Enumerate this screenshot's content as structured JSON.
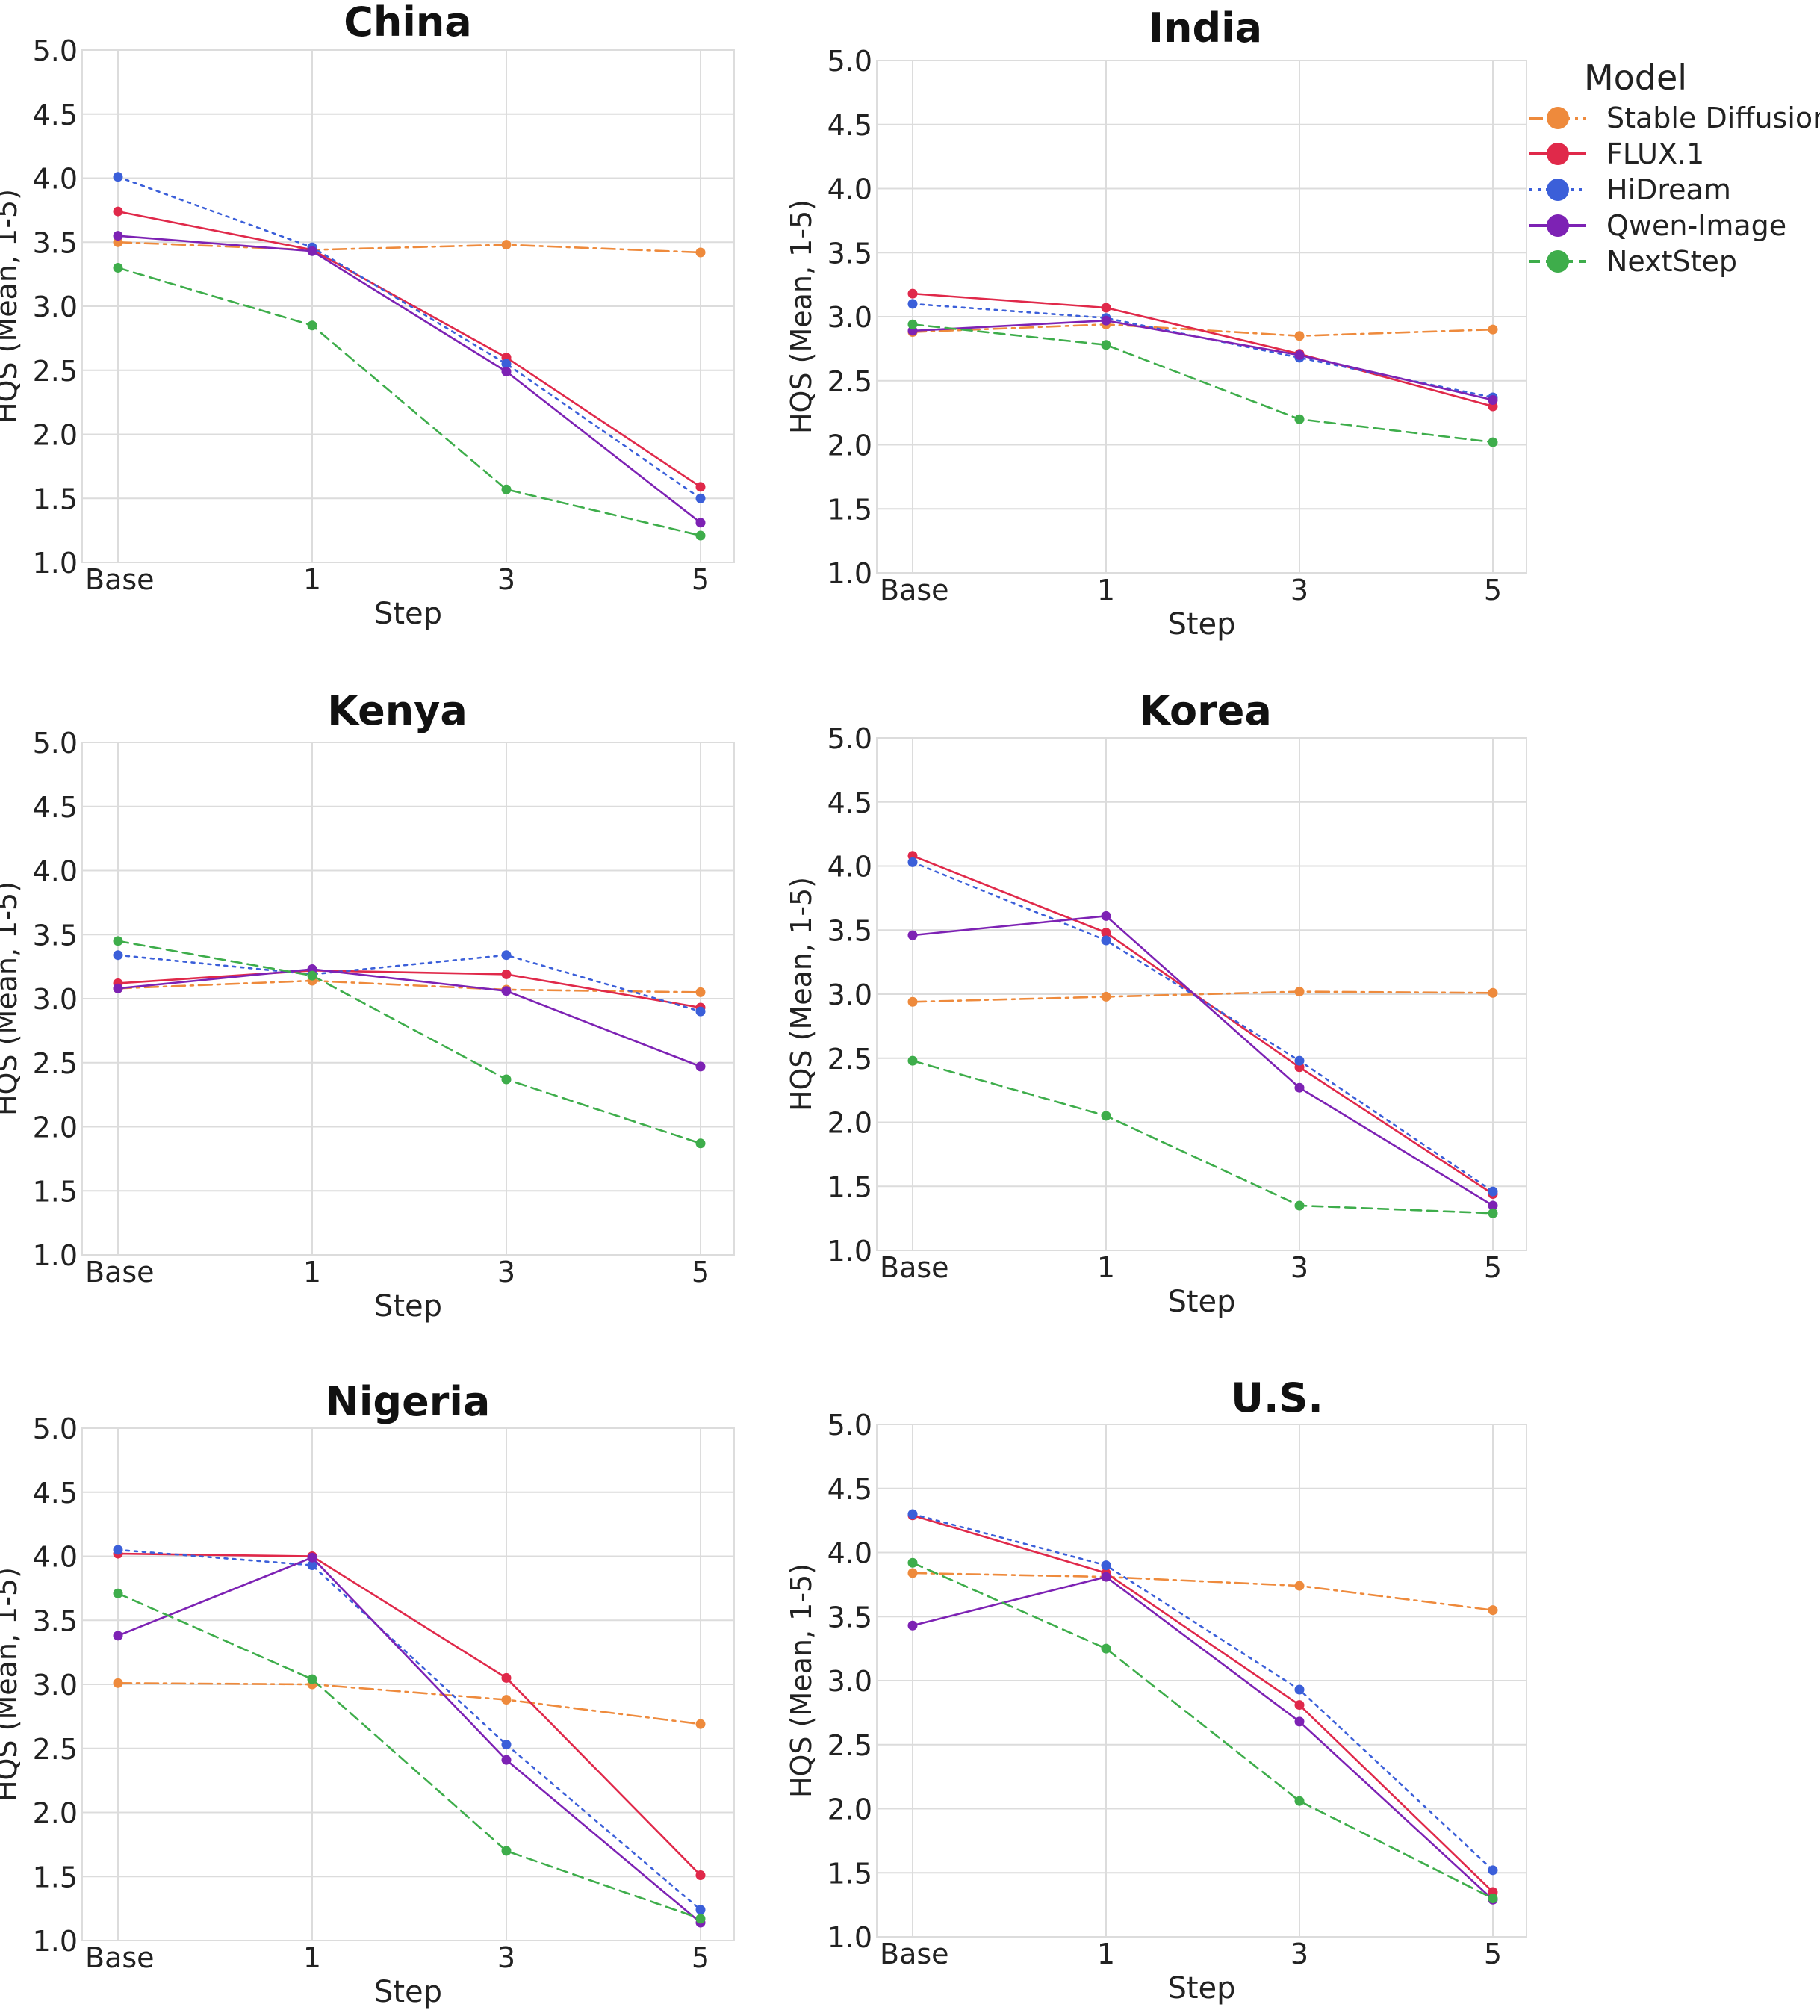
{
  "legend": {
    "title": "Model",
    "entries": [
      {
        "name": "Stable Diffusion",
        "color": "#ee8a3c",
        "dash": "dashdot"
      },
      {
        "name": "FLUX.1",
        "color": "#e0294a",
        "dash": "solid"
      },
      {
        "name": "HiDream",
        "color": "#3b5fd9",
        "dash": "dotted"
      },
      {
        "name": "Qwen-Image",
        "color": "#7d22b4",
        "dash": "solid"
      },
      {
        "name": "NextStep",
        "color": "#3ead4b",
        "dash": "dashed"
      }
    ]
  },
  "chart_data": [
    {
      "type": "line",
      "title": "China",
      "xlabel": "Step",
      "ylabel": "HQS (Mean, 1-5)",
      "categories": [
        "Base",
        "1",
        "3",
        "5"
      ],
      "ylim": [
        1.0,
        5.0
      ],
      "yticks": [
        "1.0",
        "1.5",
        "2.0",
        "2.5",
        "3.0",
        "3.5",
        "4.0",
        "4.5",
        "5.0"
      ],
      "series": [
        {
          "name": "Stable Diffusion",
          "values": [
            3.5,
            3.44,
            3.48,
            3.42
          ]
        },
        {
          "name": "FLUX.1",
          "values": [
            3.74,
            3.44,
            2.6,
            1.59
          ]
        },
        {
          "name": "HiDream",
          "values": [
            4.01,
            3.46,
            2.55,
            1.5
          ]
        },
        {
          "name": "Qwen-Image",
          "values": [
            3.55,
            3.43,
            2.49,
            1.31
          ]
        },
        {
          "name": "NextStep",
          "values": [
            3.3,
            2.85,
            1.57,
            1.21
          ]
        }
      ]
    },
    {
      "type": "line",
      "title": "India",
      "xlabel": "Step",
      "ylabel": "HQS (Mean, 1-5)",
      "categories": [
        "Base",
        "1",
        "3",
        "5"
      ],
      "ylim": [
        1.0,
        5.0
      ],
      "yticks": [
        "1.0",
        "1.5",
        "2.0",
        "2.5",
        "3.0",
        "3.5",
        "4.0",
        "4.5",
        "5.0"
      ],
      "series": [
        {
          "name": "Stable Diffusion",
          "values": [
            2.88,
            2.94,
            2.85,
            2.9
          ]
        },
        {
          "name": "FLUX.1",
          "values": [
            3.18,
            3.07,
            2.71,
            2.3
          ]
        },
        {
          "name": "HiDream",
          "values": [
            3.1,
            2.99,
            2.68,
            2.37
          ]
        },
        {
          "name": "Qwen-Image",
          "values": [
            2.89,
            2.97,
            2.7,
            2.35
          ]
        },
        {
          "name": "NextStep",
          "values": [
            2.94,
            2.78,
            2.2,
            2.02
          ]
        }
      ]
    },
    {
      "type": "line",
      "title": "Kenya",
      "xlabel": "Step",
      "ylabel": "HQS (Mean, 1-5)",
      "categories": [
        "Base",
        "1",
        "3",
        "5"
      ],
      "ylim": [
        1.0,
        5.0
      ],
      "yticks": [
        "1.0",
        "1.5",
        "2.0",
        "2.5",
        "3.0",
        "3.5",
        "4.0",
        "4.5",
        "5.0"
      ],
      "series": [
        {
          "name": "Stable Diffusion",
          "values": [
            3.08,
            3.14,
            3.07,
            3.05
          ]
        },
        {
          "name": "FLUX.1",
          "values": [
            3.12,
            3.22,
            3.19,
            2.93
          ]
        },
        {
          "name": "HiDream",
          "values": [
            3.34,
            3.19,
            3.34,
            2.9
          ]
        },
        {
          "name": "Qwen-Image",
          "values": [
            3.08,
            3.23,
            3.06,
            2.47
          ]
        },
        {
          "name": "NextStep",
          "values": [
            3.45,
            3.18,
            2.37,
            1.87
          ]
        }
      ]
    },
    {
      "type": "line",
      "title": "Korea",
      "xlabel": "Step",
      "ylabel": "HQS (Mean, 1-5)",
      "categories": [
        "Base",
        "1",
        "3",
        "5"
      ],
      "ylim": [
        1.0,
        5.0
      ],
      "yticks": [
        "1.0",
        "1.5",
        "2.0",
        "2.5",
        "3.0",
        "3.5",
        "4.0",
        "4.5",
        "5.0"
      ],
      "series": [
        {
          "name": "Stable Diffusion",
          "values": [
            2.94,
            2.98,
            3.02,
            3.01
          ]
        },
        {
          "name": "FLUX.1",
          "values": [
            4.08,
            3.48,
            2.43,
            1.44
          ]
        },
        {
          "name": "HiDream",
          "values": [
            4.03,
            3.42,
            2.48,
            1.46
          ]
        },
        {
          "name": "Qwen-Image",
          "values": [
            3.46,
            3.61,
            2.27,
            1.35
          ]
        },
        {
          "name": "NextStep",
          "values": [
            2.48,
            2.05,
            1.35,
            1.29
          ]
        }
      ]
    },
    {
      "type": "line",
      "title": "Nigeria",
      "xlabel": "Step",
      "ylabel": "HQS (Mean, 1-5)",
      "categories": [
        "Base",
        "1",
        "3",
        "5"
      ],
      "ylim": [
        1.0,
        5.0
      ],
      "yticks": [
        "1.0",
        "1.5",
        "2.0",
        "2.5",
        "3.0",
        "3.5",
        "4.0",
        "4.5",
        "5.0"
      ],
      "series": [
        {
          "name": "Stable Diffusion",
          "values": [
            3.01,
            3.0,
            2.88,
            2.69
          ]
        },
        {
          "name": "FLUX.1",
          "values": [
            4.02,
            4.0,
            3.05,
            1.51
          ]
        },
        {
          "name": "HiDream",
          "values": [
            4.05,
            3.93,
            2.53,
            1.24
          ]
        },
        {
          "name": "Qwen-Image",
          "values": [
            3.38,
            3.99,
            2.41,
            1.14
          ]
        },
        {
          "name": "NextStep",
          "values": [
            3.71,
            3.04,
            1.7,
            1.17
          ]
        }
      ]
    },
    {
      "type": "line",
      "title": "U.S.",
      "xlabel": "Step",
      "ylabel": "HQS (Mean, 1-5)",
      "categories": [
        "Base",
        "1",
        "3",
        "5"
      ],
      "ylim": [
        1.0,
        5.0
      ],
      "yticks": [
        "1.0",
        "1.5",
        "2.0",
        "2.5",
        "3.0",
        "3.5",
        "4.0",
        "4.5",
        "5.0"
      ],
      "series": [
        {
          "name": "Stable Diffusion",
          "values": [
            3.84,
            3.81,
            3.74,
            3.55
          ]
        },
        {
          "name": "FLUX.1",
          "values": [
            4.29,
            3.84,
            2.81,
            1.35
          ]
        },
        {
          "name": "HiDream",
          "values": [
            4.3,
            3.9,
            2.93,
            1.52
          ]
        },
        {
          "name": "Qwen-Image",
          "values": [
            3.43,
            3.81,
            2.68,
            1.29
          ]
        },
        {
          "name": "NextStep",
          "values": [
            3.92,
            3.25,
            2.06,
            1.3
          ]
        }
      ]
    }
  ]
}
